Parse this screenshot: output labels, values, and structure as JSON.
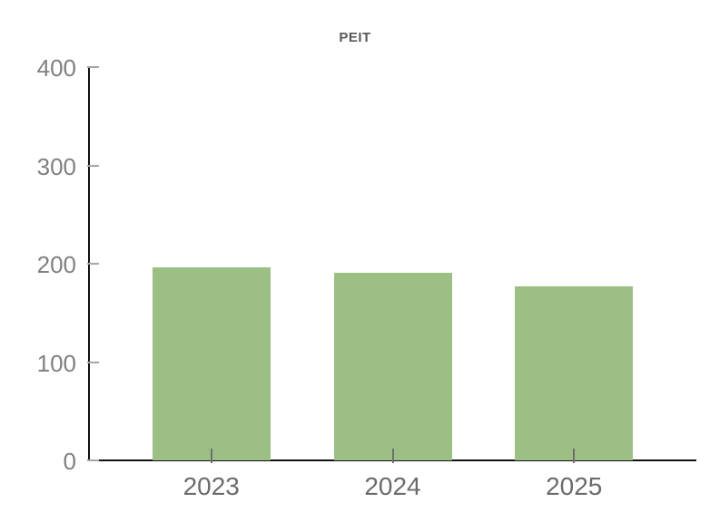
{
  "chart_data": {
    "type": "bar",
    "title": "PEIT",
    "categories": [
      "2023",
      "2024",
      "2025"
    ],
    "values": [
      196,
      191,
      177
    ],
    "xlabel": "",
    "ylabel": "",
    "ylim": [
      0,
      400
    ],
    "yticks": [
      0,
      100,
      200,
      300,
      400
    ],
    "grid": false,
    "legend_position": "none",
    "colors": {
      "bar_fill": "#9cbf84",
      "axis_line": "#111111",
      "y_tick": "#a6a6a6",
      "x_tick": "#6f6f6f",
      "y_tick_label": "#808080",
      "x_tick_label": "#6b6b6b",
      "title": "#595959",
      "background": "#ffffff"
    }
  }
}
